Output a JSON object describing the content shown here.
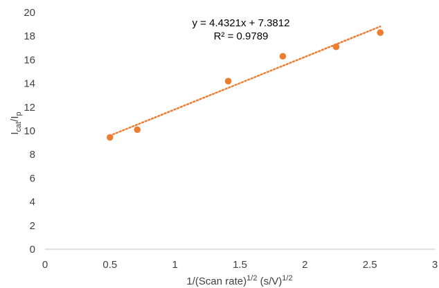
{
  "chart_data": {
    "type": "scatter",
    "x": [
      0.5,
      0.71,
      1.41,
      1.83,
      2.24,
      2.58
    ],
    "y": [
      9.45,
      10.1,
      14.2,
      16.3,
      17.1,
      18.3
    ],
    "xlim": [
      0,
      3
    ],
    "ylim": [
      0,
      20
    ],
    "xticks": [
      "0",
      "0.5",
      "1",
      "1.5",
      "2",
      "2.5",
      "3"
    ],
    "yticks": [
      "0",
      "2",
      "4",
      "6",
      "8",
      "10",
      "12",
      "14",
      "16",
      "18",
      "20"
    ],
    "grid": false,
    "point_color": "#ED7D31",
    "trendline": {
      "type": "linear",
      "slope": 4.4321,
      "intercept": 7.3812,
      "x_range": [
        0.5,
        2.58
      ],
      "style": "dotted",
      "color": "#ED7D31",
      "equation": "y = 4.4321x + 7.3812",
      "r_squared": "R² = 0.9789"
    },
    "ylabel": {
      "main": "I",
      "sub1": "cat",
      "slash": "/I",
      "sub2": "p"
    },
    "xlabel": {
      "part1": "1/(Scan rate)",
      "sup1": "1/2",
      "part2": " (s/V)",
      "sup2": "1/2"
    }
  }
}
